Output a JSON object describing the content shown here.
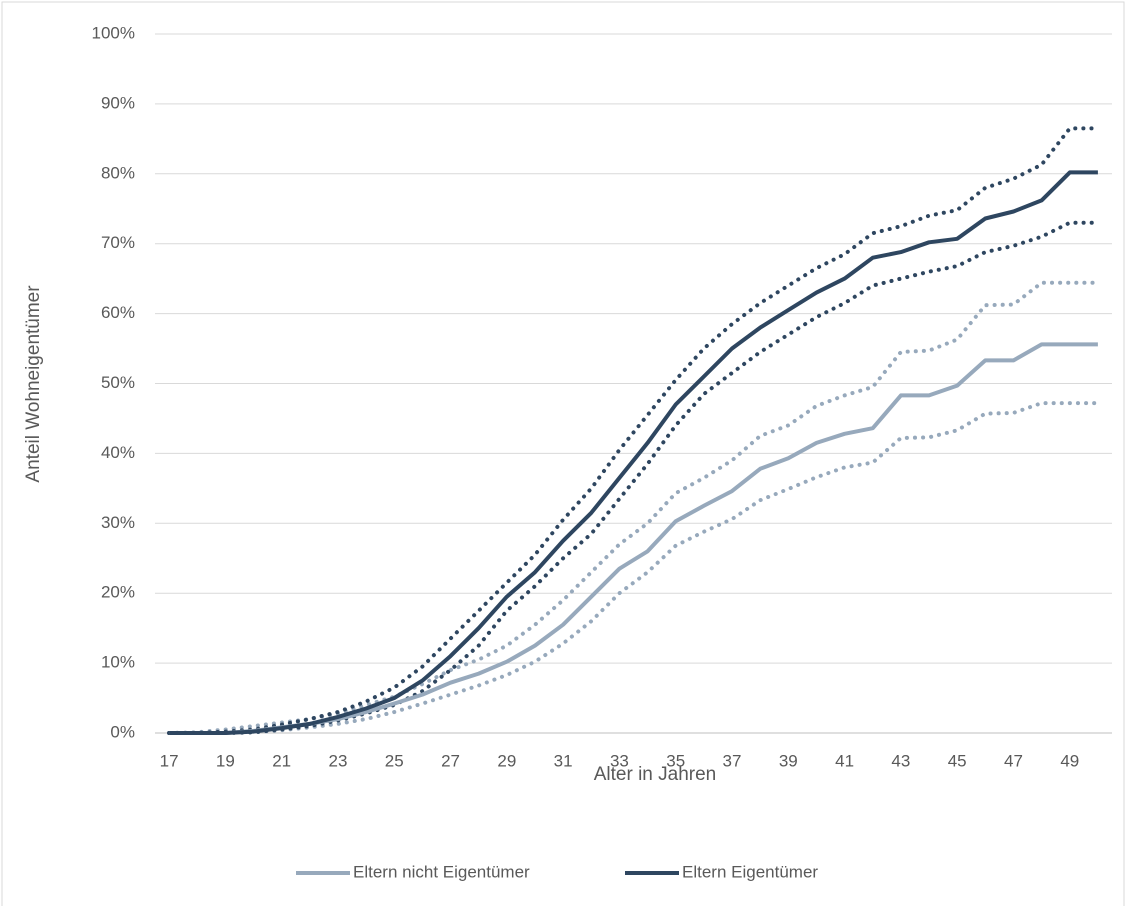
{
  "chart_data": {
    "type": "line",
    "x_label": "Alter in Jahren",
    "y_label": "Anteil Wohneigentümer",
    "categories": [
      17,
      null,
      19,
      null,
      21,
      null,
      23,
      null,
      25,
      null,
      27,
      null,
      29,
      null,
      31,
      null,
      33,
      null,
      35,
      null,
      37,
      null,
      39,
      null,
      41,
      null,
      43,
      null,
      45,
      null,
      47,
      null,
      49,
      null
    ],
    "ylim": [
      0,
      100
    ],
    "yticks": [
      {
        "value": 0,
        "label": "0%"
      },
      {
        "value": 10,
        "label": "10%"
      },
      {
        "value": 20,
        "label": "20%"
      },
      {
        "value": 30,
        "label": "30%"
      },
      {
        "value": 40,
        "label": "40%"
      },
      {
        "value": 50,
        "label": "50%"
      },
      {
        "value": 60,
        "label": "60%"
      },
      {
        "value": 70,
        "label": "70%"
      },
      {
        "value": 80,
        "label": "80%"
      },
      {
        "value": 90,
        "label": "90%"
      },
      {
        "value": 100,
        "label": "100%"
      }
    ],
    "grid": true,
    "legend": "bottom",
    "series": [
      {
        "color": "#97a9bc",
        "dash": "dotted",
        "values": [
          0,
          0.1,
          0.5,
          1,
          1.5,
          2,
          2.8,
          4,
          5.2,
          7,
          9,
          10.5,
          12.5,
          15.5,
          19,
          23,
          27,
          30,
          34.3,
          36.5,
          39,
          42.5,
          44,
          46.8,
          48.3,
          49.5,
          54.5,
          54.7,
          56.3,
          61.2,
          61.3,
          64.4,
          64.4,
          64.4
        ]
      },
      {
        "color": "#97a9bc",
        "dash": "dotted",
        "values": [
          0,
          0,
          0,
          0.1,
          0.4,
          0.8,
          1.3,
          2,
          3,
          4.2,
          5.5,
          6.8,
          8.3,
          10.2,
          12.8,
          16,
          20,
          23,
          26.8,
          28.8,
          30.6,
          33.3,
          34.9,
          36.6,
          38,
          38.7,
          42.2,
          42.3,
          43.3,
          45.7,
          45.8,
          47.2,
          47.2,
          47.2
        ]
      },
      {
        "color": "#2e4660",
        "dash": "dotted",
        "values": [
          0,
          0,
          0.2,
          0.5,
          1.2,
          2,
          3,
          4.5,
          6.5,
          9.5,
          13.5,
          17.5,
          21.5,
          25.5,
          30.5,
          35,
          40.5,
          45.5,
          50.5,
          55,
          58.5,
          61.5,
          64,
          66.5,
          68.5,
          71.5,
          72.5,
          74,
          74.8,
          78,
          79.3,
          81.3,
          86.5,
          86.5
        ]
      },
      {
        "color": "#2e4660",
        "dash": "dotted",
        "values": [
          0,
          0,
          0,
          0.1,
          0.5,
          1,
          1.8,
          2.8,
          4,
          6,
          9,
          12.5,
          17.5,
          21,
          25,
          28.5,
          33.5,
          38.5,
          44,
          48.5,
          51.5,
          54.5,
          57,
          59.5,
          61.5,
          64,
          65,
          66,
          66.8,
          68.8,
          69.7,
          71,
          73,
          73
        ]
      },
      {
        "name": "Eltern nicht Eigentümer",
        "color": "#97a9bc",
        "values": [
          0,
          0,
          0,
          0.3,
          0.8,
          1.3,
          2,
          3,
          4.2,
          5.5,
          7.2,
          8.5,
          10.2,
          12.5,
          15.5,
          19.5,
          23.5,
          26,
          30.3,
          32.5,
          34.6,
          37.8,
          39.3,
          41.5,
          42.8,
          43.6,
          48.3,
          48.3,
          49.7,
          53.3,
          53.3,
          55.6,
          55.6,
          55.6
        ]
      },
      {
        "name": "Eltern Eigentümer",
        "color": "#2e4660",
        "values": [
          0,
          0,
          0,
          0.2,
          0.7,
          1.3,
          2.3,
          3.5,
          5,
          7.5,
          11,
          15,
          19.5,
          23,
          27.5,
          31.5,
          36.5,
          41.5,
          47,
          51,
          55,
          58,
          60.5,
          63,
          65,
          68,
          68.8,
          70.2,
          70.7,
          73.6,
          74.6,
          76.2,
          80.2,
          80.2
        ]
      }
    ]
  }
}
